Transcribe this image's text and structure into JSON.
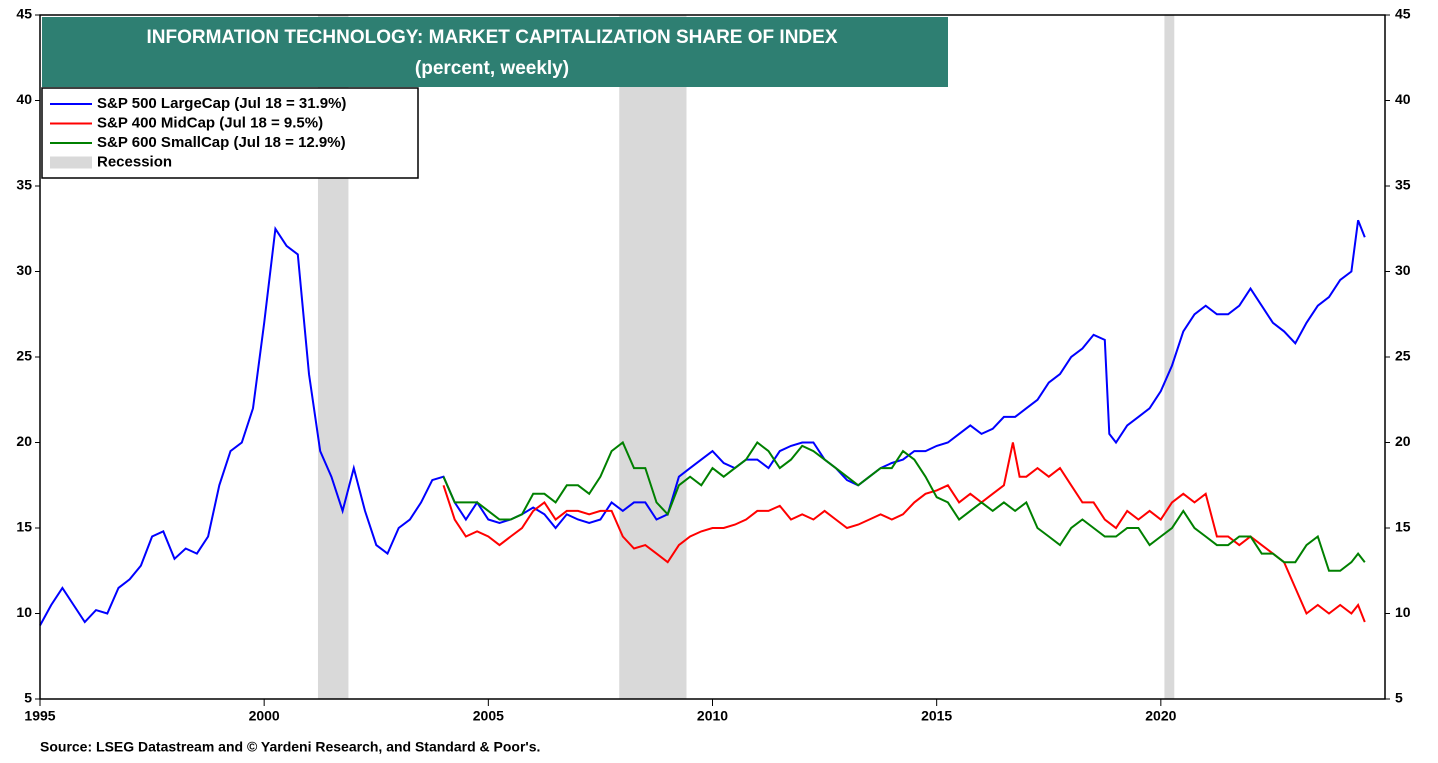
{
  "chart_data": {
    "type": "line",
    "title": "INFORMATION TECHNOLOGY: MARKET CAPITALIZATION SHARE OF INDEX",
    "subtitle": "(percent, weekly)",
    "source": "Source: LSEG Datastream and © Yardeni Research, and Standard & Poor's.",
    "xlim": [
      1995,
      2025
    ],
    "xticks": [
      1995,
      2000,
      2005,
      2010,
      2015,
      2020
    ],
    "ylim": [
      5,
      45
    ],
    "yticks": [
      5,
      10,
      15,
      20,
      25,
      30,
      35,
      40,
      45
    ],
    "recession_label": "Recession",
    "recession_color": "#d9d9d9",
    "recessions": [
      [
        2001.2,
        2001.88
      ],
      [
        2007.92,
        2009.42
      ],
      [
        2020.08,
        2020.3
      ]
    ],
    "series": [
      {
        "name": "S&P 500 LargeCap (Jul 18 = 31.9%)",
        "color": "#0000ff",
        "x": [
          1995.0,
          1995.25,
          1995.5,
          1995.75,
          1996.0,
          1996.25,
          1996.5,
          1996.75,
          1997.0,
          1997.25,
          1997.5,
          1997.75,
          1998.0,
          1998.25,
          1998.5,
          1998.75,
          1999.0,
          1999.25,
          1999.5,
          1999.75,
          2000.0,
          2000.25,
          2000.5,
          2000.75,
          2001.0,
          2001.25,
          2001.5,
          2001.75,
          2002.0,
          2002.25,
          2002.5,
          2002.75,
          2003.0,
          2003.25,
          2003.5,
          2003.75,
          2004.0,
          2004.25,
          2004.5,
          2004.75,
          2005.0,
          2005.25,
          2005.5,
          2005.75,
          2006.0,
          2006.25,
          2006.5,
          2006.75,
          2007.0,
          2007.25,
          2007.5,
          2007.75,
          2008.0,
          2008.25,
          2008.5,
          2008.75,
          2009.0,
          2009.25,
          2009.5,
          2009.75,
          2010.0,
          2010.25,
          2010.5,
          2010.75,
          2011.0,
          2011.25,
          2011.5,
          2011.75,
          2012.0,
          2012.25,
          2012.5,
          2012.75,
          2013.0,
          2013.25,
          2013.5,
          2013.75,
          2014.0,
          2014.25,
          2014.5,
          2014.75,
          2015.0,
          2015.25,
          2015.5,
          2015.75,
          2016.0,
          2016.25,
          2016.5,
          2016.75,
          2017.0,
          2017.25,
          2017.5,
          2017.75,
          2018.0,
          2018.25,
          2018.5,
          2018.75,
          2018.85,
          2019.0,
          2019.25,
          2019.5,
          2019.75,
          2020.0,
          2020.25,
          2020.5,
          2020.75,
          2021.0,
          2021.25,
          2021.5,
          2021.75,
          2022.0,
          2022.25,
          2022.5,
          2022.75,
          2023.0,
          2023.25,
          2023.5,
          2023.75,
          2024.0,
          2024.25,
          2024.4,
          2024.55
        ],
        "values": [
          9.3,
          10.5,
          11.5,
          10.5,
          9.5,
          10.2,
          10.0,
          11.5,
          12.0,
          12.8,
          14.5,
          14.8,
          13.2,
          13.8,
          13.5,
          14.5,
          17.5,
          19.5,
          20.0,
          22.0,
          27.0,
          32.5,
          31.5,
          31.0,
          24.0,
          19.5,
          18.0,
          16.0,
          18.5,
          16.0,
          14.0,
          13.5,
          15.0,
          15.5,
          16.5,
          17.8,
          18.0,
          16.5,
          15.5,
          16.5,
          15.5,
          15.3,
          15.5,
          15.8,
          16.2,
          15.8,
          15.0,
          15.8,
          15.5,
          15.3,
          15.5,
          16.5,
          16.0,
          16.5,
          16.5,
          15.5,
          15.8,
          18.0,
          18.5,
          19.0,
          19.5,
          18.8,
          18.5,
          19.0,
          19.0,
          18.5,
          19.5,
          19.8,
          20.0,
          20.0,
          19.0,
          18.5,
          17.8,
          17.5,
          18.0,
          18.5,
          18.8,
          19.0,
          19.5,
          19.5,
          19.8,
          20.0,
          20.5,
          21.0,
          20.5,
          20.8,
          21.5,
          21.5,
          22.0,
          22.5,
          23.5,
          24.0,
          25.0,
          25.5,
          26.3,
          26.0,
          20.5,
          20.0,
          21.0,
          21.5,
          22.0,
          23.0,
          24.5,
          26.5,
          27.5,
          28.0,
          27.5,
          27.5,
          28.0,
          29.0,
          28.0,
          27.0,
          26.5,
          25.8,
          27.0,
          28.0,
          28.5,
          29.5,
          30.0,
          33.0,
          32.0
        ]
      },
      {
        "name": "S&P 400 MidCap (Jul 18 = 9.5%)",
        "color": "#ff0000",
        "x": [
          2004.0,
          2004.25,
          2004.5,
          2004.75,
          2005.0,
          2005.25,
          2005.5,
          2005.75,
          2006.0,
          2006.25,
          2006.5,
          2006.75,
          2007.0,
          2007.25,
          2007.5,
          2007.75,
          2008.0,
          2008.25,
          2008.5,
          2008.75,
          2009.0,
          2009.25,
          2009.5,
          2009.75,
          2010.0,
          2010.25,
          2010.5,
          2010.75,
          2011.0,
          2011.25,
          2011.5,
          2011.75,
          2012.0,
          2012.25,
          2012.5,
          2012.75,
          2013.0,
          2013.25,
          2013.5,
          2013.75,
          2014.0,
          2014.25,
          2014.5,
          2014.75,
          2015.0,
          2015.25,
          2015.5,
          2015.75,
          2016.0,
          2016.25,
          2016.5,
          2016.7,
          2016.85,
          2017.0,
          2017.25,
          2017.5,
          2017.75,
          2018.0,
          2018.25,
          2018.5,
          2018.75,
          2019.0,
          2019.25,
          2019.5,
          2019.75,
          2020.0,
          2020.25,
          2020.5,
          2020.75,
          2021.0,
          2021.25,
          2021.5,
          2021.75,
          2022.0,
          2022.25,
          2022.5,
          2022.75,
          2023.0,
          2023.25,
          2023.5,
          2023.75,
          2024.0,
          2024.25,
          2024.4,
          2024.55
        ],
        "values": [
          17.5,
          15.5,
          14.5,
          14.8,
          14.5,
          14.0,
          14.5,
          15.0,
          16.0,
          16.5,
          15.5,
          16.0,
          16.0,
          15.8,
          16.0,
          16.0,
          14.5,
          13.8,
          14.0,
          13.5,
          13.0,
          14.0,
          14.5,
          14.8,
          15.0,
          15.0,
          15.2,
          15.5,
          16.0,
          16.0,
          16.3,
          15.5,
          15.8,
          15.5,
          16.0,
          15.5,
          15.0,
          15.2,
          15.5,
          15.8,
          15.5,
          15.8,
          16.5,
          17.0,
          17.2,
          17.5,
          16.5,
          17.0,
          16.5,
          17.0,
          17.5,
          20.0,
          18.0,
          18.0,
          18.5,
          18.0,
          18.5,
          17.5,
          16.5,
          16.5,
          15.5,
          15.0,
          16.0,
          15.5,
          16.0,
          15.5,
          16.5,
          17.0,
          16.5,
          17.0,
          14.5,
          14.5,
          14.0,
          14.5,
          14.0,
          13.5,
          13.0,
          11.5,
          10.0,
          10.5,
          10.0,
          10.5,
          10.0,
          10.5,
          9.5
        ]
      },
      {
        "name": "S&P 600 SmallCap (Jul 18 = 12.9%)",
        "color": "#008000",
        "x": [
          2004.0,
          2004.25,
          2004.5,
          2004.75,
          2005.0,
          2005.25,
          2005.5,
          2005.75,
          2006.0,
          2006.25,
          2006.5,
          2006.75,
          2007.0,
          2007.25,
          2007.5,
          2007.75,
          2008.0,
          2008.25,
          2008.5,
          2008.75,
          2009.0,
          2009.25,
          2009.5,
          2009.75,
          2010.0,
          2010.25,
          2010.5,
          2010.75,
          2011.0,
          2011.25,
          2011.5,
          2011.75,
          2012.0,
          2012.25,
          2012.5,
          2012.75,
          2013.0,
          2013.25,
          2013.5,
          2013.75,
          2014.0,
          2014.25,
          2014.5,
          2014.75,
          2015.0,
          2015.25,
          2015.5,
          2015.75,
          2016.0,
          2016.25,
          2016.5,
          2016.75,
          2017.0,
          2017.25,
          2017.5,
          2017.75,
          2018.0,
          2018.25,
          2018.5,
          2018.75,
          2019.0,
          2019.25,
          2019.5,
          2019.75,
          2020.0,
          2020.25,
          2020.5,
          2020.75,
          2021.0,
          2021.25,
          2021.5,
          2021.75,
          2022.0,
          2022.25,
          2022.5,
          2022.75,
          2023.0,
          2023.25,
          2023.5,
          2023.75,
          2024.0,
          2024.25,
          2024.4,
          2024.55
        ],
        "values": [
          18.0,
          16.5,
          16.5,
          16.5,
          16.0,
          15.5,
          15.5,
          15.8,
          17.0,
          17.0,
          16.5,
          17.5,
          17.5,
          17.0,
          18.0,
          19.5,
          20.0,
          18.5,
          18.5,
          16.5,
          15.8,
          17.5,
          18.0,
          17.5,
          18.5,
          18.0,
          18.5,
          19.0,
          20.0,
          19.5,
          18.5,
          19.0,
          19.8,
          19.5,
          19.0,
          18.5,
          18.0,
          17.5,
          18.0,
          18.5,
          18.5,
          19.5,
          19.0,
          18.0,
          16.8,
          16.5,
          15.5,
          16.0,
          16.5,
          16.0,
          16.5,
          16.0,
          16.5,
          15.0,
          14.5,
          14.0,
          15.0,
          15.5,
          15.0,
          14.5,
          14.5,
          15.0,
          15.0,
          14.0,
          14.5,
          15.0,
          16.0,
          15.0,
          14.5,
          14.0,
          14.0,
          14.5,
          14.5,
          13.5,
          13.5,
          13.0,
          13.0,
          14.0,
          14.5,
          12.5,
          12.5,
          13.0,
          13.5,
          13.0
        ]
      }
    ]
  }
}
